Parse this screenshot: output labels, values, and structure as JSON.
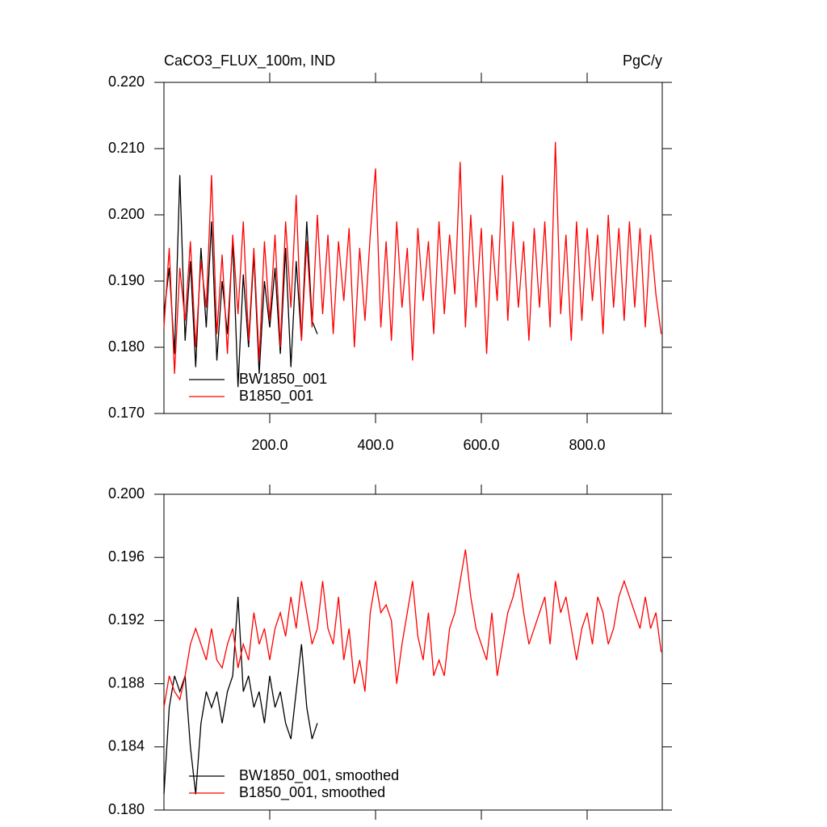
{
  "chart_data": [
    {
      "type": "line",
      "title": "CaCO3_FLUX_100m, IND",
      "units": "PgC/y",
      "xlim": [
        0,
        942
      ],
      "ylim": [
        0.17,
        0.22
      ],
      "xticks": [
        {
          "value": 200,
          "label": "200.0"
        },
        {
          "value": 400,
          "label": "400.0"
        },
        {
          "value": 600,
          "label": "600.0"
        },
        {
          "value": 800,
          "label": "800.0"
        }
      ],
      "yticks": [
        {
          "value": 0.17,
          "label": "0.170"
        },
        {
          "value": 0.18,
          "label": "0.180"
        },
        {
          "value": 0.19,
          "label": "0.190"
        },
        {
          "value": 0.2,
          "label": "0.200"
        },
        {
          "value": 0.21,
          "label": "0.210"
        },
        {
          "value": 0.22,
          "label": "0.220"
        }
      ],
      "legend": "lower left",
      "series": [
        {
          "name": "BW1850_001",
          "color": "#000000",
          "x": [
            0,
            10,
            20,
            30,
            40,
            50,
            60,
            70,
            80,
            90,
            100,
            110,
            120,
            130,
            140,
            150,
            160,
            170,
            180,
            190,
            200,
            210,
            220,
            230,
            240,
            250,
            260,
            270,
            280,
            290
          ],
          "values": [
            0.185,
            0.192,
            0.179,
            0.206,
            0.181,
            0.193,
            0.177,
            0.195,
            0.183,
            0.199,
            0.178,
            0.19,
            0.182,
            0.196,
            0.174,
            0.191,
            0.18,
            0.194,
            0.176,
            0.19,
            0.183,
            0.192,
            0.179,
            0.195,
            0.177,
            0.193,
            0.181,
            0.199,
            0.184,
            0.182
          ]
        },
        {
          "name": "B1850_001",
          "color": "#ff0000",
          "x": [
            0,
            10,
            20,
            30,
            40,
            50,
            60,
            70,
            80,
            90,
            100,
            110,
            120,
            130,
            140,
            150,
            160,
            170,
            180,
            190,
            200,
            210,
            220,
            230,
            240,
            250,
            260,
            270,
            280,
            290,
            300,
            310,
            320,
            330,
            340,
            350,
            360,
            370,
            380,
            390,
            400,
            410,
            420,
            430,
            440,
            450,
            460,
            470,
            480,
            490,
            500,
            510,
            520,
            530,
            540,
            550,
            560,
            570,
            580,
            590,
            600,
            610,
            620,
            630,
            640,
            650,
            660,
            670,
            680,
            690,
            700,
            710,
            720,
            730,
            740,
            750,
            760,
            770,
            780,
            790,
            800,
            810,
            820,
            830,
            840,
            850,
            860,
            870,
            880,
            890,
            900,
            910,
            920,
            930,
            940
          ],
          "values": [
            0.183,
            0.195,
            0.176,
            0.192,
            0.184,
            0.196,
            0.18,
            0.193,
            0.186,
            0.206,
            0.182,
            0.194,
            0.179,
            0.197,
            0.185,
            0.199,
            0.181,
            0.195,
            0.178,
            0.196,
            0.184,
            0.197,
            0.18,
            0.199,
            0.186,
            0.203,
            0.181,
            0.196,
            0.183,
            0.2,
            0.185,
            0.197,
            0.182,
            0.196,
            0.187,
            0.198,
            0.18,
            0.195,
            0.184,
            0.197,
            0.207,
            0.183,
            0.196,
            0.181,
            0.199,
            0.186,
            0.195,
            0.178,
            0.198,
            0.187,
            0.196,
            0.182,
            0.199,
            0.185,
            0.197,
            0.188,
            0.208,
            0.183,
            0.2,
            0.186,
            0.198,
            0.179,
            0.197,
            0.187,
            0.206,
            0.184,
            0.199,
            0.186,
            0.196,
            0.181,
            0.198,
            0.186,
            0.199,
            0.183,
            0.211,
            0.185,
            0.197,
            0.181,
            0.199,
            0.184,
            0.198,
            0.187,
            0.197,
            0.182,
            0.2,
            0.186,
            0.198,
            0.184,
            0.199,
            0.186,
            0.198,
            0.183,
            0.197,
            0.188,
            0.182
          ]
        }
      ]
    },
    {
      "type": "line",
      "xlim": [
        0,
        942
      ],
      "ylim": [
        0.18,
        0.2
      ],
      "yticks": [
        {
          "value": 0.18,
          "label": "0.180"
        },
        {
          "value": 0.184,
          "label": "0.184"
        },
        {
          "value": 0.188,
          "label": "0.188"
        },
        {
          "value": 0.192,
          "label": "0.192"
        },
        {
          "value": 0.196,
          "label": "0.196"
        },
        {
          "value": 0.2,
          "label": "0.200"
        }
      ],
      "legend": "lower left",
      "series": [
        {
          "name": "BW1850_001, smoothed",
          "color": "#000000",
          "x": [
            0,
            10,
            20,
            30,
            40,
            50,
            60,
            70,
            80,
            90,
            100,
            110,
            120,
            130,
            140,
            150,
            160,
            170,
            180,
            190,
            200,
            210,
            220,
            230,
            240,
            250,
            260,
            270,
            280,
            290
          ],
          "values": [
            0.181,
            0.1865,
            0.1885,
            0.1875,
            0.1885,
            0.184,
            0.181,
            0.1855,
            0.1875,
            0.1865,
            0.1875,
            0.1855,
            0.1875,
            0.1885,
            0.1935,
            0.1875,
            0.1885,
            0.1865,
            0.1875,
            0.1855,
            0.1885,
            0.1865,
            0.1875,
            0.1855,
            0.1845,
            0.1875,
            0.1905,
            0.1865,
            0.1845,
            0.1855
          ]
        },
        {
          "name": "B1850_001, smoothed",
          "color": "#ff0000",
          "x": [
            0,
            10,
            20,
            30,
            40,
            50,
            60,
            70,
            80,
            90,
            100,
            110,
            120,
            130,
            140,
            150,
            160,
            170,
            180,
            190,
            200,
            210,
            220,
            230,
            240,
            250,
            260,
            270,
            280,
            290,
            300,
            310,
            320,
            330,
            340,
            350,
            360,
            370,
            380,
            390,
            400,
            410,
            420,
            430,
            440,
            450,
            460,
            470,
            480,
            490,
            500,
            510,
            520,
            530,
            540,
            550,
            560,
            570,
            580,
            590,
            600,
            610,
            620,
            630,
            640,
            650,
            660,
            670,
            680,
            690,
            700,
            710,
            720,
            730,
            740,
            750,
            760,
            770,
            780,
            790,
            800,
            810,
            820,
            830,
            840,
            850,
            860,
            870,
            880,
            890,
            900,
            910,
            920,
            930,
            940
          ],
          "values": [
            0.1865,
            0.1885,
            0.1875,
            0.187,
            0.1885,
            0.1905,
            0.1915,
            0.1905,
            0.1895,
            0.1915,
            0.1895,
            0.189,
            0.1905,
            0.1915,
            0.189,
            0.1905,
            0.1895,
            0.1925,
            0.1905,
            0.1915,
            0.1895,
            0.1915,
            0.1925,
            0.191,
            0.1935,
            0.1915,
            0.1945,
            0.1925,
            0.1905,
            0.1915,
            0.1945,
            0.1915,
            0.1905,
            0.1935,
            0.1895,
            0.1915,
            0.188,
            0.1895,
            0.1875,
            0.1925,
            0.1945,
            0.1925,
            0.193,
            0.192,
            0.188,
            0.1905,
            0.1925,
            0.1945,
            0.191,
            0.1895,
            0.1925,
            0.1885,
            0.1895,
            0.1885,
            0.1915,
            0.1925,
            0.1945,
            0.1965,
            0.1935,
            0.1915,
            0.1905,
            0.1895,
            0.1925,
            0.1885,
            0.1905,
            0.1925,
            0.1935,
            0.195,
            0.1925,
            0.1905,
            0.1915,
            0.1925,
            0.1935,
            0.1905,
            0.1945,
            0.1925,
            0.1935,
            0.1915,
            0.1895,
            0.1915,
            0.1925,
            0.1905,
            0.1935,
            0.1925,
            0.1905,
            0.1915,
            0.1935,
            0.1945,
            0.1935,
            0.1925,
            0.1915,
            0.1935,
            0.1915,
            0.1925,
            0.19
          ]
        }
      ]
    }
  ]
}
